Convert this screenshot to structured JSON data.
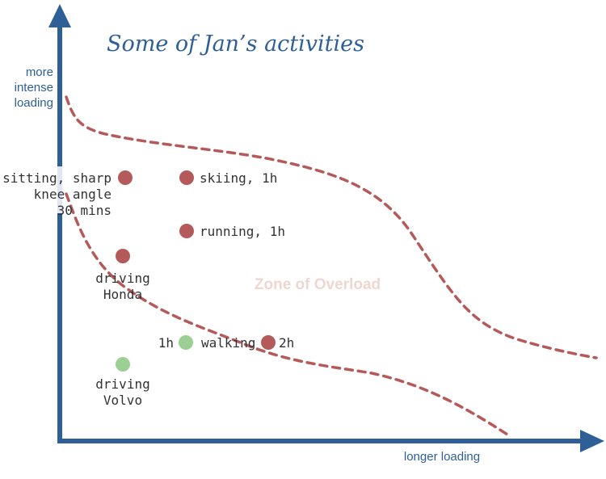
{
  "title": "Some of Jan’s activities",
  "y_axis_label_lines": [
    "more",
    "intense",
    "loading"
  ],
  "x_axis_label": "longer loading",
  "zone_label": "Zone of Overload",
  "activities": [
    {
      "id": "sitting",
      "lines": [
        "sitting, sharp",
        "knee angle",
        "30 mins"
      ],
      "status": "overload"
    },
    {
      "id": "skiing",
      "lines": [
        "skiing, 1h"
      ],
      "status": "overload"
    },
    {
      "id": "running",
      "lines": [
        "running, 1h"
      ],
      "status": "overload"
    },
    {
      "id": "driving-honda",
      "lines": [
        "driving",
        "Honda"
      ],
      "status": "overload"
    },
    {
      "id": "walking-1h",
      "lines": [
        "1h"
      ],
      "status": "safe"
    },
    {
      "id": "walking-label",
      "lines": [
        "walking"
      ],
      "status": "none"
    },
    {
      "id": "walking-2h",
      "lines": [
        "2h"
      ],
      "status": "overload"
    },
    {
      "id": "driving-volvo",
      "lines": [
        "driving",
        "Volvo"
      ],
      "status": "safe"
    }
  ],
  "colors": {
    "axis": "#2e5f97",
    "title": "#2e5f97",
    "overload_dot": "#b55a5a",
    "safe_dot": "#9ccf94",
    "boundary": "#b55a5a",
    "zone_text": "#f0d6d0",
    "text": "#333333"
  }
}
